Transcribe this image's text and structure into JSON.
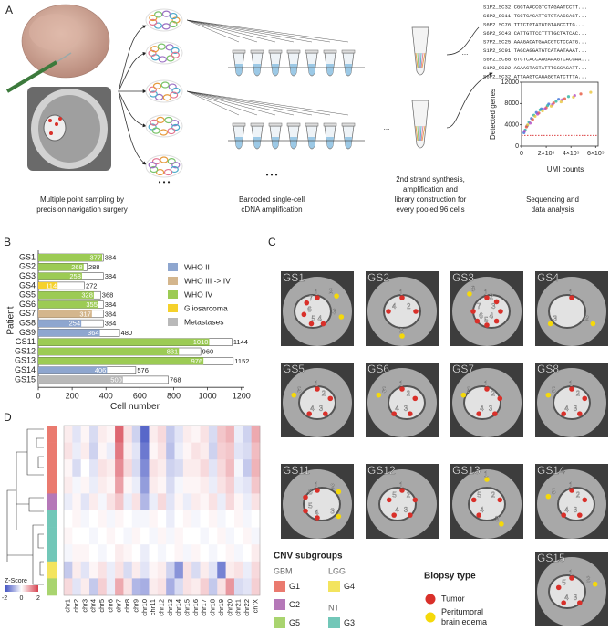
{
  "panel_labels": [
    "A",
    "B",
    "C",
    "D"
  ],
  "panel_a": {
    "captions": [
      [
        "Multiple point sampling by",
        "precision navigation surgery"
      ],
      [
        "Barcoded single-cell",
        "cDNA amplification"
      ],
      [
        "2nd strand synthesis,",
        "amplification and",
        "library construction for",
        "every pooled 96 cells"
      ],
      [
        "Sequencing and",
        "data analysis"
      ]
    ],
    "ellipsis": "• • •",
    "dots": "...",
    "sequences": [
      {
        "text": "S1P2_SC32  CGGTAACCGTCTAGAATCCTT...",
        "color": "#e0738f"
      },
      {
        "text": "S6P2_SC11  TCCTCACATTCTGTAACCACT...",
        "color": "#f0b24a"
      },
      {
        "text": "S6P2_SC76  TTTCTGTATGTGTAGCCTTG...",
        "color": "#9b6fc3"
      },
      {
        "text": "S6P2_SC43  CATTGTTCCTTTTGCTATCAC...",
        "color": "#555555"
      },
      {
        "text": "S7P2_SC25  AAAGACATGAACGTCTCCATG...",
        "color": "#6fb7d8"
      },
      {
        "text": "S1P2_SC91  TAGCAGGATGTCATAATAAAT...",
        "color": "#c44e7a"
      },
      {
        "text": "S6P2_SC88  GTCTCACCAAGAAAGTCACGAA...",
        "color": "#f0b24a"
      },
      {
        "text": "S1P2_SC22  AGAACTACTATTTGGGAGATT...",
        "color": "#9b6fc3"
      },
      {
        "text": "S6P2_SC32  ATTAAGTCAGAGGTATCTTTA...",
        "color": "#c44e7a"
      }
    ]
  },
  "panel_c": {
    "images": [
      {
        "label": "GS1",
        "points": [
          {
            "label": "1",
            "type": "tumor"
          },
          {
            "label": "2",
            "type": "edema"
          },
          {
            "label": "3",
            "type": "edema"
          },
          {
            "label": "4",
            "type": "tumor"
          },
          {
            "label": "5",
            "type": "tumor"
          },
          {
            "label": "6",
            "type": "tumor"
          },
          {
            "label": "7",
            "type": "tumor"
          }
        ]
      },
      {
        "label": "GS2",
        "points": [
          {
            "label": "1",
            "type": "tumor"
          },
          {
            "label": "2",
            "type": "tumor"
          },
          {
            "label": "3",
            "type": "edema"
          },
          {
            "label": "4",
            "type": "tumor"
          }
        ]
      },
      {
        "label": "GS3",
        "points": [
          {
            "label": "1",
            "type": "tumor"
          },
          {
            "label": "2",
            "type": "tumor"
          },
          {
            "label": "3",
            "type": "tumor"
          },
          {
            "label": "4",
            "type": "tumor"
          },
          {
            "label": "5",
            "type": "tumor"
          },
          {
            "label": "6",
            "type": "tumor"
          },
          {
            "label": "7",
            "type": "tumor"
          },
          {
            "label": "8",
            "type": "edema"
          }
        ]
      },
      {
        "label": "GS4",
        "points": [
          {
            "label": "1",
            "type": "tumor"
          },
          {
            "label": "2",
            "type": "edema"
          },
          {
            "label": "3",
            "type": "edema"
          }
        ]
      },
      {
        "label": "GS5",
        "points": [
          {
            "label": "1",
            "type": "tumor"
          },
          {
            "label": "2",
            "type": "tumor"
          },
          {
            "label": "3",
            "type": "tumor"
          },
          {
            "label": "4",
            "type": "tumor"
          },
          {
            "label": "5",
            "type": "edema"
          }
        ]
      },
      {
        "label": "GS6",
        "points": [
          {
            "label": "1",
            "type": "tumor"
          },
          {
            "label": "2",
            "type": "tumor"
          },
          {
            "label": "3",
            "type": "tumor"
          },
          {
            "label": "4",
            "type": "tumor"
          },
          {
            "label": "5",
            "type": "edema"
          }
        ]
      },
      {
        "label": "GS7",
        "points": [
          {
            "label": "1",
            "type": "tumor"
          },
          {
            "label": "2",
            "type": "tumor"
          },
          {
            "label": "3",
            "type": "tumor"
          },
          {
            "label": "4",
            "type": "tumor"
          },
          {
            "label": "5",
            "type": "edema"
          }
        ]
      },
      {
        "label": "GS8",
        "points": [
          {
            "label": "1",
            "type": "tumor"
          },
          {
            "label": "2",
            "type": "tumor"
          },
          {
            "label": "3",
            "type": "tumor"
          },
          {
            "label": "4",
            "type": "tumor"
          },
          {
            "label": "5",
            "type": "edema"
          }
        ]
      },
      {
        "label": "GS11",
        "points": [
          {
            "label": "1",
            "type": "tumor"
          },
          {
            "label": "2",
            "type": "edema"
          },
          {
            "label": "3",
            "type": "edema"
          },
          {
            "label": "4",
            "type": "tumor"
          },
          {
            "label": "5",
            "type": "tumor"
          },
          {
            "label": "6",
            "type": "tumor"
          }
        ]
      },
      {
        "label": "GS12",
        "points": [
          {
            "label": "1",
            "type": "tumor"
          },
          {
            "label": "2",
            "type": "tumor"
          },
          {
            "label": "3",
            "type": "tumor"
          },
          {
            "label": "4",
            "type": "tumor"
          },
          {
            "label": "5",
            "type": "tumor"
          }
        ]
      },
      {
        "label": "GS13",
        "points": [
          {
            "label": "1",
            "type": "edema"
          },
          {
            "label": "2",
            "type": "tumor"
          },
          {
            "label": "3",
            "type": "edema"
          },
          {
            "label": "4",
            "type": "tumor"
          },
          {
            "label": "5",
            "type": "tumor"
          }
        ]
      },
      {
        "label": "GS14",
        "points": [
          {
            "label": "1",
            "type": "tumor"
          },
          {
            "label": "2",
            "type": "tumor"
          },
          {
            "label": "3",
            "type": "tumor"
          },
          {
            "label": "4",
            "type": "tumor"
          },
          {
            "label": "5",
            "type": "edema"
          }
        ]
      },
      {
        "label": "GS15",
        "points": [
          {
            "label": "1",
            "type": "tumor"
          },
          {
            "label": "2",
            "type": "edema"
          },
          {
            "label": "3",
            "type": "tumor"
          },
          {
            "label": "4",
            "type": "tumor"
          },
          {
            "label": "5",
            "type": "tumor"
          }
        ]
      }
    ]
  },
  "cnv_legend": {
    "title": "CNV subgroups",
    "groups": [
      {
        "name": "GBM",
        "items": [
          {
            "label": "G1",
            "color": "#ea7a6f"
          },
          {
            "label": "G2",
            "color": "#b578b8"
          },
          {
            "label": "G5",
            "color": "#a9d46f"
          }
        ]
      },
      {
        "name": "LGG",
        "items": [
          {
            "label": "G4",
            "color": "#f3e45e"
          }
        ]
      },
      {
        "name": "NT",
        "items": [
          {
            "label": "G3",
            "color": "#72c7b8"
          }
        ]
      }
    ]
  },
  "biopsy_legend": {
    "title": "Biopsy type",
    "items": [
      {
        "label": "Tumor",
        "type": "tumor",
        "color": "#d9302a"
      },
      {
        "label": "Peritumoral brain edema",
        "type": "edema",
        "color": "#f5d90a"
      }
    ]
  },
  "chart_data": [
    {
      "type": "scatter",
      "xlabel": "UMI counts",
      "ylabel": "Detected genes",
      "xlim": [
        0,
        620000
      ],
      "ylim": [
        0,
        12000
      ],
      "xticks": [
        0,
        {
          "value": 200000,
          "label": "2×10⁵"
        },
        {
          "value": 400000,
          "label": "4×10⁵"
        },
        {
          "value": 600000,
          "label": "6×10⁵"
        }
      ],
      "yticks": [
        0,
        4000,
        8000,
        12000
      ],
      "threshold": 2000,
      "threshold_color": "#d62728",
      "series": [
        {
          "color": "#3b6fd8",
          "x": [
            20000,
            45000,
            80000,
            120000,
            160000,
            220000,
            300000
          ],
          "y": [
            2500,
            3800,
            5200,
            6300,
            7000,
            7900,
            8800
          ]
        },
        {
          "color": "#2bb3a3",
          "x": [
            30000,
            60000,
            100000,
            150000,
            210000,
            280000,
            380000
          ],
          "y": [
            3000,
            4500,
            5800,
            6800,
            7600,
            8400,
            9300
          ]
        },
        {
          "color": "#e6553c",
          "x": [
            40000,
            90000,
            140000,
            200000,
            260000,
            350000,
            480000
          ],
          "y": [
            3600,
            5000,
            6200,
            7200,
            8100,
            8900,
            9800
          ]
        },
        {
          "color": "#b548c6",
          "x": [
            25000,
            70000,
            130000,
            190000,
            250000,
            330000,
            430000
          ],
          "y": [
            2800,
            4300,
            6000,
            7000,
            7800,
            8700,
            9500
          ]
        },
        {
          "color": "#e8c43a",
          "x": [
            50000,
            110000,
            170000,
            240000,
            320000,
            420000,
            560000
          ],
          "y": [
            4000,
            5600,
            6600,
            7500,
            8300,
            9200,
            10100
          ]
        }
      ]
    },
    {
      "type": "bar",
      "orientation": "horizontal",
      "xlabel": "Cell number",
      "ylabel": "Patient",
      "categories": [
        "GS1",
        "GS2",
        "GS3",
        "GS4",
        "GS5",
        "GS6",
        "GS7",
        "GS8",
        "GS9",
        "GS11",
        "GS12",
        "GS13",
        "GS14",
        "GS15"
      ],
      "values": [
        377,
        268,
        258,
        114,
        328,
        355,
        317,
        254,
        364,
        1010,
        831,
        976,
        406,
        500
      ],
      "totals": [
        384,
        288,
        384,
        272,
        368,
        384,
        384,
        384,
        480,
        1144,
        960,
        1152,
        576,
        768
      ],
      "groups": [
        2,
        2,
        2,
        3,
        2,
        2,
        1,
        0,
        0,
        2,
        2,
        2,
        0,
        4
      ],
      "legend": [
        {
          "name": "WHO II",
          "color": "#8ea6cf"
        },
        {
          "name": "WHO III -> IV",
          "color": "#d4b68d"
        },
        {
          "name": "WHO IV",
          "color": "#9ccb54"
        },
        {
          "name": "Gliosarcoma",
          "color": "#f5d12b"
        },
        {
          "name": "Metastases",
          "color": "#b9b9b9"
        }
      ],
      "xlim": [
        0,
        1250
      ],
      "xticks": [
        0,
        200,
        400,
        600,
        800,
        1000,
        1200
      ]
    },
    {
      "type": "heatmap",
      "colorbar_label": "Z-Score",
      "zlim": [
        -2,
        2
      ],
      "zticks": [
        -2,
        0,
        2
      ],
      "x": [
        "chr1",
        "chr2",
        "chr3",
        "chr4",
        "chr5",
        "chr6",
        "chr7",
        "chr8",
        "chr9",
        "chr10",
        "chr11",
        "chr12",
        "chr13",
        "chr14",
        "chr15",
        "chr16",
        "chr17",
        "chr18",
        "chr19",
        "chr20",
        "chr21",
        "chr22",
        "chrX"
      ],
      "row_groups": [
        "G1",
        "G1",
        "G1",
        "G1",
        "G2",
        "G3",
        "G3",
        "G3",
        "G4",
        "G5"
      ],
      "values": [
        [
          0.2,
          -0.3,
          0.1,
          -0.4,
          0.2,
          0.1,
          1.6,
          0.3,
          -0.5,
          -1.7,
          0.2,
          0.4,
          -0.6,
          -0.3,
          0.2,
          0.1,
          0.3,
          -0.4,
          0.6,
          0.8,
          -0.2,
          -0.5,
          0.9
        ],
        [
          0.3,
          -0.2,
          0.2,
          -0.5,
          0.1,
          -0.2,
          1.4,
          0.2,
          -0.3,
          -1.5,
          0.1,
          0.3,
          -0.7,
          -0.2,
          0.1,
          0.3,
          0.2,
          -0.5,
          0.5,
          0.6,
          -0.3,
          -0.4,
          0.7
        ],
        [
          0.1,
          -0.4,
          0.0,
          -0.3,
          0.3,
          0.2,
          1.2,
          0.4,
          -0.4,
          -1.3,
          0.3,
          0.2,
          -0.5,
          -0.4,
          0.2,
          0.2,
          0.4,
          -0.3,
          0.4,
          0.7,
          -0.1,
          -0.6,
          0.8
        ],
        [
          0.2,
          -0.1,
          0.1,
          -0.2,
          0.2,
          0.1,
          1.0,
          0.1,
          -0.2,
          -1.1,
          0.2,
          0.1,
          -0.4,
          -0.1,
          0.1,
          0.1,
          0.2,
          -0.2,
          0.3,
          0.5,
          -0.2,
          -0.3,
          0.6
        ],
        [
          -0.2,
          0.1,
          -0.3,
          0.2,
          -0.1,
          0.3,
          0.6,
          -0.2,
          0.3,
          -0.8,
          -0.2,
          0.4,
          -0.3,
          0.1,
          -0.2,
          0.2,
          0.1,
          0.3,
          -0.2,
          0.4,
          0.1,
          -0.2,
          0.3
        ],
        [
          0.0,
          0.1,
          -0.1,
          0.0,
          0.1,
          -0.1,
          0.1,
          0.0,
          -0.1,
          -0.1,
          0.1,
          0.0,
          -0.2,
          0.0,
          0.1,
          -0.1,
          0.0,
          0.1,
          -0.1,
          0.0,
          0.1,
          -0.1,
          0.0
        ],
        [
          0.1,
          0.0,
          0.0,
          -0.1,
          0.0,
          0.1,
          0.0,
          -0.1,
          0.1,
          0.0,
          -0.1,
          0.1,
          -0.1,
          0.1,
          0.0,
          0.0,
          -0.1,
          0.0,
          0.1,
          -0.1,
          0.0,
          0.1,
          -0.1
        ],
        [
          -0.1,
          0.1,
          0.1,
          0.0,
          -0.1,
          0.0,
          0.2,
          0.1,
          0.0,
          -0.2,
          0.0,
          -0.1,
          0.0,
          0.1,
          -0.1,
          0.1,
          0.0,
          -0.1,
          0.0,
          0.1,
          -0.1,
          0.0,
          0.2
        ],
        [
          -0.6,
          0.2,
          -0.3,
          0.1,
          0.3,
          -0.2,
          0.3,
          -0.4,
          0.2,
          -0.3,
          0.1,
          0.2,
          -0.5,
          -1.2,
          0.3,
          -0.4,
          0.2,
          -0.3,
          -1.4,
          0.2,
          0.3,
          -0.2,
          0.4
        ],
        [
          0.4,
          -0.3,
          0.2,
          -0.6,
          0.5,
          -0.2,
          0.9,
          0.3,
          -0.8,
          -0.9,
          0.2,
          0.3,
          -0.9,
          -0.4,
          0.3,
          0.2,
          0.5,
          -0.6,
          0.3,
          1.1,
          -0.4,
          -0.3,
          0.5
        ]
      ]
    }
  ]
}
